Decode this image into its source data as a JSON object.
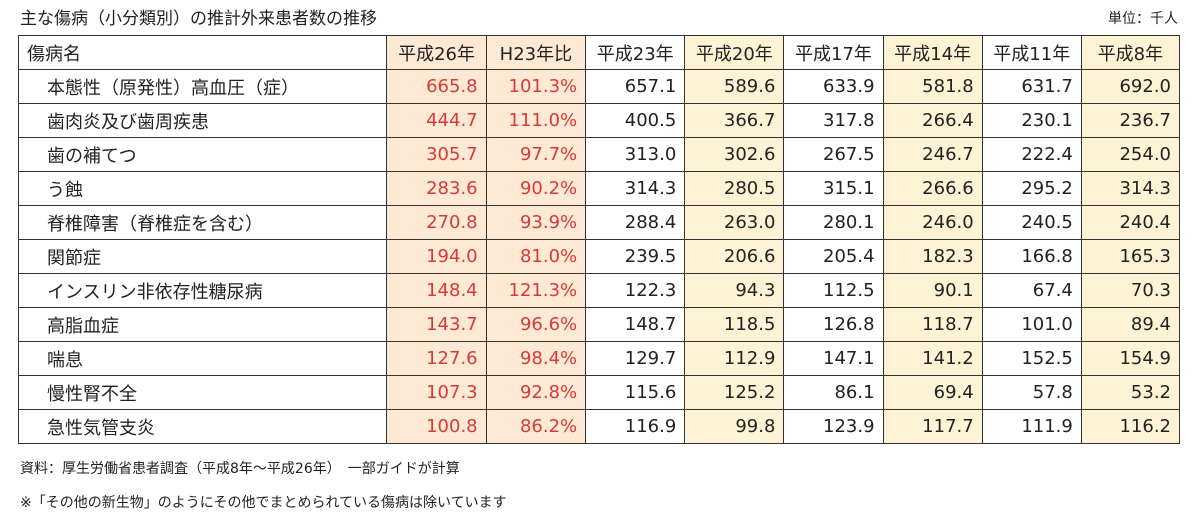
{
  "header": {
    "title": "主な傷病（小分類別）の推計外来患者数の推移",
    "unit": "単位：千人"
  },
  "table": {
    "header": [
      "傷病名",
      "平成26年",
      "H23年比",
      "平成23年",
      "平成20年",
      "平成17年",
      "平成14年",
      "平成11年",
      "平成8年"
    ],
    "rows": [
      [
        "本態性（原発性）高血圧（症）",
        "665.8",
        "101.3%",
        "657.1",
        "589.6",
        "633.9",
        "581.8",
        "631.7",
        "692.0"
      ],
      [
        "歯肉炎及び歯周疾患",
        "444.7",
        "111.0%",
        "400.5",
        "366.7",
        "317.8",
        "266.4",
        "230.1",
        "236.7"
      ],
      [
        "歯の補てつ",
        "305.7",
        "97.7%",
        "313.0",
        "302.6",
        "267.5",
        "246.7",
        "222.4",
        "254.0"
      ],
      [
        "う蝕",
        "283.6",
        "90.2%",
        "314.3",
        "280.5",
        "315.1",
        "266.6",
        "295.2",
        "314.3"
      ],
      [
        "脊椎障害（脊椎症を含む）",
        "270.8",
        "93.9%",
        "288.4",
        "263.0",
        "280.1",
        "246.0",
        "240.5",
        "240.4"
      ],
      [
        "関節症",
        "194.0",
        "81.0%",
        "239.5",
        "206.6",
        "205.4",
        "182.3",
        "166.8",
        "165.3"
      ],
      [
        "インスリン非依存性糖尿病",
        "148.4",
        "121.3%",
        "122.3",
        "94.3",
        "112.5",
        "90.1",
        "67.4",
        "70.3"
      ],
      [
        "高脂血症",
        "143.7",
        "96.6%",
        "148.7",
        "118.5",
        "126.8",
        "118.7",
        "101.0",
        "89.4"
      ],
      [
        "喘息",
        "127.6",
        "98.4%",
        "129.7",
        "112.9",
        "147.1",
        "141.2",
        "152.5",
        "154.9"
      ],
      [
        "慢性腎不全",
        "107.3",
        "92.8%",
        "115.6",
        "125.2",
        "86.1",
        "69.4",
        "57.8",
        "53.2"
      ],
      [
        "急性気管支炎",
        "100.8",
        "86.2%",
        "116.9",
        "99.8",
        "123.9",
        "117.7",
        "111.9",
        "116.2"
      ]
    ]
  },
  "notes": [
    "資料：厚生労働省患者調査（平成8年～平成26年）　一部ガイドが計算",
    "※「その他の新生物」のようにその他でまとめられている傷病は除いています"
  ]
}
